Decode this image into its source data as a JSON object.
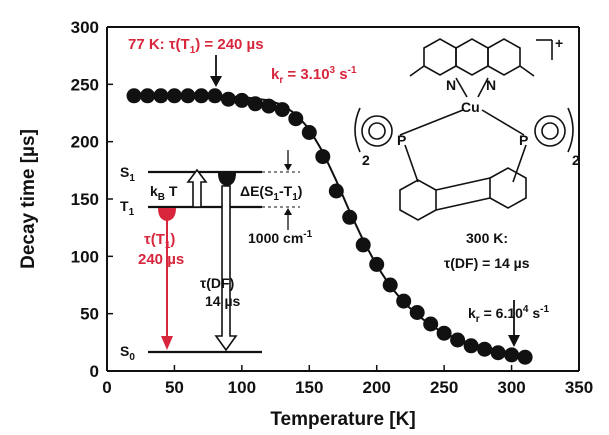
{
  "chart_data": {
    "type": "scatter",
    "xlabel": "Temperature [K]",
    "ylabel": "Decay time [µs]",
    "xlim": [
      0,
      350
    ],
    "ylim": [
      0,
      300
    ],
    "xticks": [
      0,
      50,
      100,
      150,
      200,
      250,
      300,
      350
    ],
    "yticks": [
      0,
      50,
      100,
      150,
      200,
      250,
      300
    ],
    "grid": false,
    "series": [
      {
        "kind": "points",
        "x": [
          20,
          30,
          40,
          50,
          60,
          70,
          80,
          90,
          100,
          110,
          120,
          130,
          140,
          150,
          160,
          170,
          180,
          190,
          200,
          210,
          220,
          230,
          240,
          250,
          260,
          270,
          280,
          290,
          300,
          310
        ],
        "y": [
          240,
          240,
          240,
          240,
          240,
          240,
          240,
          237,
          236,
          233,
          231,
          228,
          220,
          208,
          187,
          157,
          134,
          110,
          93,
          75,
          61,
          51,
          41,
          33,
          27,
          22,
          19,
          16,
          14,
          12
        ]
      },
      {
        "kind": "fit",
        "x": [
          20,
          60,
          100,
          120,
          130,
          140,
          150,
          160,
          170,
          180,
          190,
          200,
          210,
          220,
          230,
          240,
          250,
          260,
          270,
          280,
          290,
          300,
          310
        ],
        "y": [
          240,
          240,
          239,
          236,
          232,
          224,
          211,
          191,
          166,
          139,
          114,
          92,
          74,
          60,
          49,
          40,
          33,
          28,
          24,
          21,
          18,
          16,
          14
        ]
      }
    ],
    "annotations": {
      "low_t_title": "77 K: τ(T",
      "low_t_sub": "1",
      "low_t_value": ") = 240 µs",
      "kr_low_prefix": "k",
      "kr_low_sub": "r",
      "kr_low_value": " = 3.10",
      "kr_low_exp": "3",
      "kr_low_unit": " s",
      "kr_low_unit_exp": "-1",
      "high_t_title": "300 K:",
      "high_t_tau": "τ(DF) = 14 µs",
      "kr_high_prefix": "k",
      "kr_high_sub": "r",
      "kr_high_value": " = 6.10",
      "kr_high_exp": "4",
      "kr_high_unit": " s",
      "kr_high_unit_exp": "-1",
      "energy_diagram": {
        "s1": "S",
        "s1_sub": "1",
        "t1": "T",
        "t1_sub": "1",
        "s0": "S",
        "s0_sub": "0",
        "kbt": "k",
        "kbt_sub": "B",
        "kbt_t": " T",
        "delta_e": "ΔE(S",
        "delta_e_sub1": "1",
        "delta_e_mid": "-T",
        "delta_e_sub2": "1",
        "delta_e_end": ")",
        "gap": "1000 cm",
        "gap_exp": "-1",
        "tau_t1_a": "τ(T",
        "tau_t1_sub": "1",
        "tau_t1_b": ")",
        "tau_t1_value": "240 µs",
        "tau_df": "τ(DF)",
        "tau_df_value": "14 µs"
      },
      "molecule": {
        "atom_n": "N",
        "atom_cu": "Cu",
        "atom_p": "P",
        "subscript_2": "2",
        "charge": "+"
      }
    }
  }
}
